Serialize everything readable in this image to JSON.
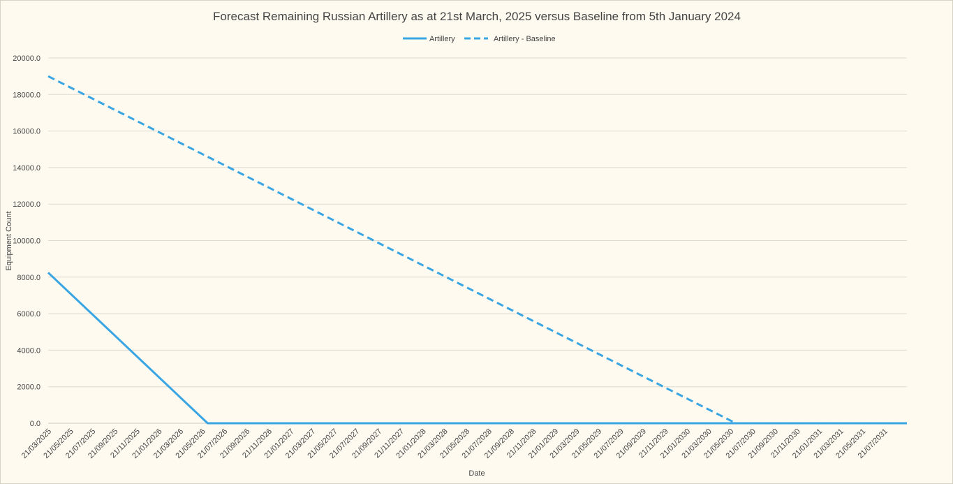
{
  "chart_data": {
    "type": "line",
    "title": "Forecast Remaining Russian Artillery as at 21st March, 2025 versus Baseline from 5th January 2024",
    "xlabel": "Date",
    "ylabel": "Equipment Count",
    "ylim": [
      0,
      20000
    ],
    "yticks": [
      "0.0",
      "2000.0",
      "4000.0",
      "6000.0",
      "8000.0",
      "10000.0",
      "12000.0",
      "14000.0",
      "16000.0",
      "18000.0",
      "20000.0"
    ],
    "x_tick_labels": [
      "21/03/2025",
      "21/05/2025",
      "21/07/2025",
      "21/09/2025",
      "21/11/2025",
      "21/01/2026",
      "21/03/2026",
      "21/05/2026",
      "21/07/2026",
      "21/09/2026",
      "21/11/2026",
      "21/01/2027",
      "21/03/2027",
      "21/05/2027",
      "21/07/2027",
      "21/09/2027",
      "21/11/2027",
      "21/01/2028",
      "21/03/2028",
      "21/05/2028",
      "21/07/2028",
      "21/09/2028",
      "21/11/2028",
      "21/01/2029",
      "21/03/2029",
      "21/05/2029",
      "21/07/2029",
      "21/09/2029",
      "21/11/2029",
      "21/01/2030",
      "21/03/2030",
      "21/05/2030",
      "21/07/2030",
      "21/09/2030",
      "21/11/2030",
      "21/01/2031",
      "21/03/2031",
      "21/05/2031",
      "21/07/2031"
    ],
    "xlim": [
      "21/03/2025",
      "21/09/2031"
    ],
    "grid": true,
    "legend_position": "top",
    "series": [
      {
        "name": "Artillery",
        "style": "solid",
        "color": "#3aa5e3",
        "points": [
          {
            "x": "21/03/2025",
            "y": 8250
          },
          {
            "x": "05/06/2026",
            "y": 0
          },
          {
            "x": "21/09/2031",
            "y": 0
          }
        ]
      },
      {
        "name": "Artillery - Baseline",
        "style": "dashed",
        "color": "#3aa5e3",
        "points": [
          {
            "x": "21/03/2025",
            "y": 19000
          },
          {
            "x": "05/06/2030",
            "y": 0
          },
          {
            "x": "21/09/2031",
            "y": 0
          }
        ]
      }
    ]
  }
}
